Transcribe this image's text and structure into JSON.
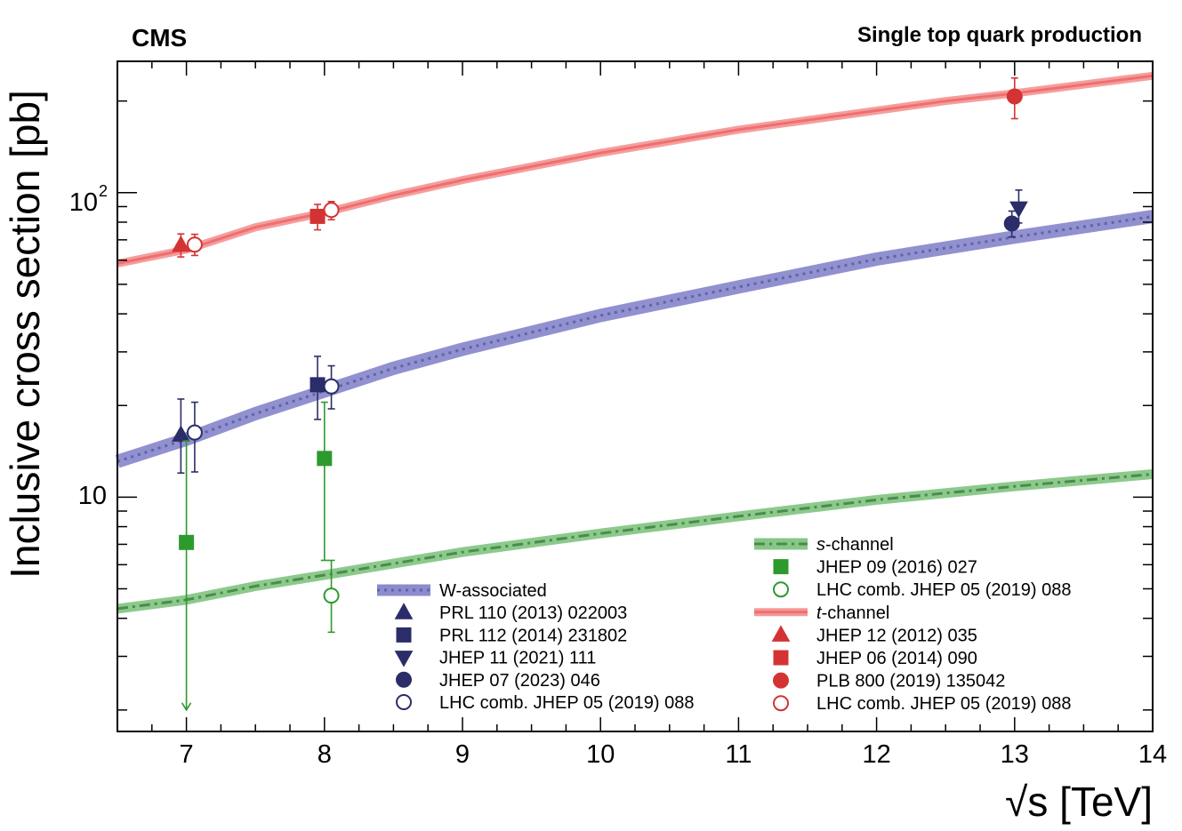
{
  "chart_data": {
    "type": "scatter",
    "title": "CMS",
    "subtitle": "Single top quark production",
    "xlabel": "√s [TeV]",
    "ylabel": "Inclusive cross section [pb]",
    "xlim": [
      6.5,
      14
    ],
    "ylim": [
      1.7,
      270
    ],
    "yscale": "log",
    "xticks": [
      7,
      8,
      9,
      10,
      11,
      12,
      13,
      14
    ],
    "xtick_labels": [
      "7",
      "8",
      "9",
      "10",
      "11",
      "12",
      "13",
      "14"
    ],
    "ytick_label_10": "10",
    "ytick_label_100_base": "10",
    "ytick_label_100_exp": "2",
    "colors": {
      "tw": "#2b2d68",
      "tw_band": "#8b8bce",
      "tw_line": "#6262aa",
      "s": "#2d9a2d",
      "s_band": "#86c786",
      "s_line": "#4d8a4d",
      "t": "#d43333",
      "t_band": "#f49898",
      "t_line": "#ef6f6f"
    },
    "predictions": [
      {
        "name": "t-channel",
        "x": [
          6.5,
          7,
          7.5,
          8,
          8.5,
          9,
          10,
          11,
          12,
          12.5,
          13,
          14
        ],
        "y": [
          58.5,
          65,
          77,
          86,
          98,
          110,
          135,
          161,
          186,
          200,
          212,
          242
        ]
      },
      {
        "name": "W-associated",
        "x": [
          6.5,
          7,
          7.5,
          8,
          8.5,
          9,
          10,
          11,
          12,
          13,
          14
        ],
        "y": [
          13.1,
          15.5,
          18.8,
          22.3,
          26.5,
          30.6,
          39.5,
          49,
          60.5,
          71.5,
          83.5
        ]
      },
      {
        "name": "s-channel",
        "x": [
          6.5,
          7,
          7.5,
          8,
          9,
          10,
          11,
          12,
          13,
          14
        ],
        "y": [
          4.3,
          4.6,
          5.1,
          5.55,
          6.6,
          7.6,
          8.65,
          9.8,
          10.85,
          11.9
        ]
      }
    ],
    "measurements": [
      {
        "group": "t",
        "marker": "triangle-up",
        "filled": true,
        "x": 6.96,
        "y": 67.2,
        "lo": 61.5,
        "hi": 73.2,
        "label": "JHEP 12 (2012) 035"
      },
      {
        "group": "t",
        "marker": "circle",
        "filled": false,
        "x": 7.06,
        "y": 67.5,
        "lo": 62.2,
        "hi": 73.0,
        "label": "LHC comb. JHEP 05 (2019) 088"
      },
      {
        "group": "t",
        "marker": "square",
        "filled": true,
        "x": 7.95,
        "y": 83.6,
        "lo": 75.5,
        "hi": 91.5,
        "label": "JHEP 06 (2014) 090"
      },
      {
        "group": "t",
        "marker": "circle",
        "filled": false,
        "x": 8.05,
        "y": 87.7,
        "lo": 81.5,
        "hi": 93.5,
        "label": "LHC comb. JHEP 05 (2019) 088"
      },
      {
        "group": "t",
        "marker": "circle",
        "filled": true,
        "x": 13.0,
        "y": 207,
        "lo": 175,
        "hi": 238,
        "label": "PLB 800 (2019) 135042"
      },
      {
        "group": "tw",
        "marker": "triangle-up",
        "filled": true,
        "x": 6.96,
        "y": 16.0,
        "lo": 12.0,
        "hi": 21.0,
        "label": "PRL 110 (2013) 022003"
      },
      {
        "group": "tw",
        "marker": "circle",
        "filled": false,
        "x": 7.06,
        "y": 16.3,
        "lo": 12.1,
        "hi": 20.5,
        "label": "LHC comb. JHEP 05 (2019) 088"
      },
      {
        "group": "tw",
        "marker": "square",
        "filled": true,
        "x": 7.95,
        "y": 23.4,
        "lo": 18.0,
        "hi": 29.0,
        "label": "PRL 112 (2014) 231802"
      },
      {
        "group": "tw",
        "marker": "circle",
        "filled": false,
        "x": 8.05,
        "y": 23.1,
        "lo": 19.5,
        "hi": 27.0,
        "label": "LHC comb. JHEP 05 (2019) 088"
      },
      {
        "group": "tw",
        "marker": "circle",
        "filled": true,
        "x": 12.98,
        "y": 79.2,
        "lo": 71.5,
        "hi": 87.0,
        "label": "JHEP 07 (2023) 046"
      },
      {
        "group": "tw",
        "marker": "triangle-down",
        "filled": true,
        "x": 13.03,
        "y": 89.0,
        "lo": 79.5,
        "hi": 102.0,
        "label": "JHEP 11 (2021) 111"
      },
      {
        "group": "s",
        "marker": "square",
        "filled": true,
        "x": 7.0,
        "y": 7.1,
        "lo": 2.0,
        "hi": 15.3,
        "label": "JHEP 09 (2016) 027",
        "arrow": true
      },
      {
        "group": "s",
        "marker": "square",
        "filled": true,
        "x": 8.0,
        "y": 13.4,
        "lo": 6.2,
        "hi": 20.5,
        "label": "JHEP 09 (2016) 027"
      },
      {
        "group": "s",
        "marker": "circle",
        "filled": false,
        "x": 8.05,
        "y": 4.75,
        "lo": 3.6,
        "hi": 6.2,
        "label": "LHC comb. JHEP 05 (2019) 088"
      }
    ],
    "legend_left": [
      {
        "kind": "band",
        "group": "tw",
        "label": "W-associated"
      },
      {
        "kind": "marker",
        "group": "tw",
        "marker": "triangle-up",
        "filled": true,
        "label": "PRL 110 (2013) 022003"
      },
      {
        "kind": "marker",
        "group": "tw",
        "marker": "square",
        "filled": true,
        "label": "PRL 112 (2014) 231802"
      },
      {
        "kind": "marker",
        "group": "tw",
        "marker": "triangle-down",
        "filled": true,
        "label": "JHEP 11 (2021) 111"
      },
      {
        "kind": "marker",
        "group": "tw",
        "marker": "circle",
        "filled": true,
        "label": "JHEP 07 (2023) 046"
      },
      {
        "kind": "marker",
        "group": "tw",
        "marker": "circle",
        "filled": false,
        "label": "LHC comb. JHEP 05 (2019) 088"
      }
    ],
    "legend_right": [
      {
        "kind": "band",
        "group": "s",
        "label": "s",
        "label_suffix": "-channel"
      },
      {
        "kind": "marker",
        "group": "s",
        "marker": "square",
        "filled": true,
        "label": "JHEP 09 (2016) 027"
      },
      {
        "kind": "marker",
        "group": "s",
        "marker": "circle",
        "filled": false,
        "label": "LHC comb. JHEP 05 (2019) 088"
      },
      {
        "kind": "band",
        "group": "t",
        "label": "t",
        "label_suffix": "-channel"
      },
      {
        "kind": "marker",
        "group": "t",
        "marker": "triangle-up",
        "filled": true,
        "label": "JHEP 12 (2012) 035"
      },
      {
        "kind": "marker",
        "group": "t",
        "marker": "square",
        "filled": true,
        "label": "JHEP 06 (2014) 090"
      },
      {
        "kind": "marker",
        "group": "t",
        "marker": "circle",
        "filled": true,
        "label": "PLB 800 (2019) 135042"
      },
      {
        "kind": "marker",
        "group": "t",
        "marker": "circle",
        "filled": false,
        "label": "LHC comb. JHEP 05 (2019) 088"
      }
    ]
  }
}
